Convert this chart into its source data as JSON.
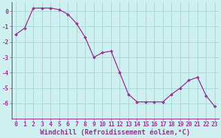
{
  "x": [
    0,
    1,
    2,
    3,
    4,
    5,
    6,
    7,
    8,
    9,
    10,
    11,
    12,
    13,
    14,
    15,
    16,
    17,
    18,
    19,
    20,
    21,
    22,
    23
  ],
  "y": [
    -1.5,
    -1.1,
    0.2,
    0.2,
    0.2,
    0.1,
    -0.2,
    -0.8,
    -1.7,
    -3.0,
    -2.7,
    -2.6,
    -4.0,
    -5.4,
    -5.9,
    -5.9,
    -5.9,
    -5.9,
    -5.4,
    -5.0,
    -4.5,
    -4.3,
    -5.5,
    -6.2
  ],
  "line_color": "#993399",
  "marker": "D",
  "marker_size": 2.0,
  "bg_color": "#cff0f0",
  "grid_color": "#a8d8d8",
  "xlabel": "Windchill (Refroidissement éolien,°C)",
  "label_color": "#993399",
  "tick_fontsize": 6.0,
  "xlabel_fontsize": 7.0,
  "ylim": [
    -7.0,
    0.6
  ],
  "xlim": [
    -0.5,
    23.5
  ],
  "yticks": [
    0,
    -1,
    -2,
    -3,
    -4,
    -5,
    -6
  ],
  "xticks": [
    0,
    1,
    2,
    3,
    4,
    5,
    6,
    7,
    8,
    9,
    10,
    11,
    12,
    13,
    14,
    15,
    16,
    17,
    18,
    19,
    20,
    21,
    22,
    23
  ],
  "line_width": 1.0
}
